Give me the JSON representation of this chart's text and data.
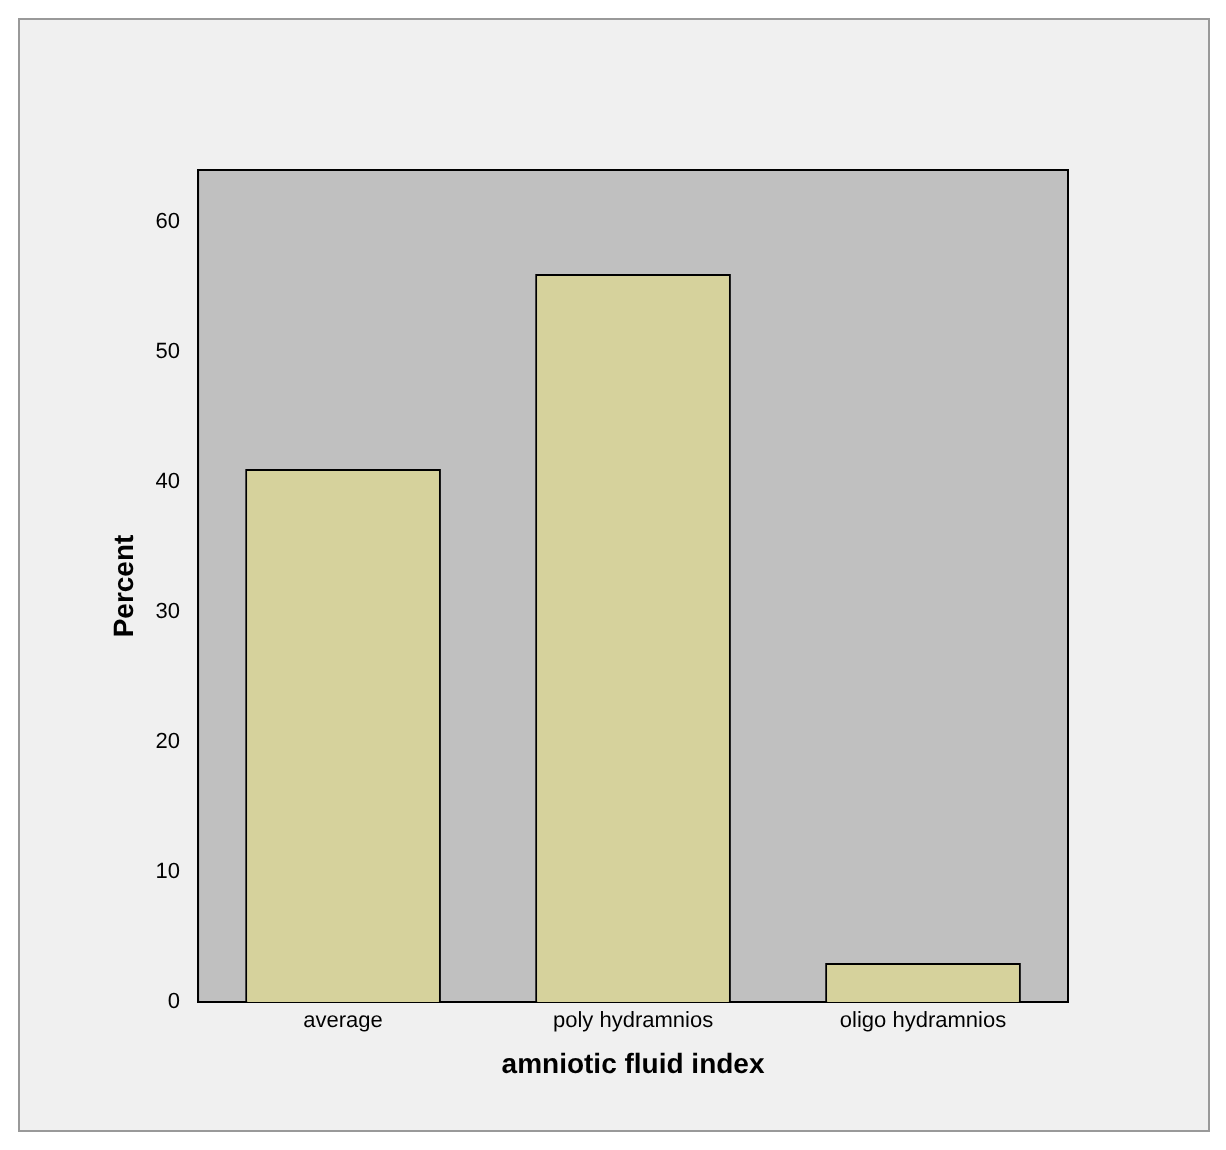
{
  "chart_data": {
    "type": "bar",
    "xlabel": "amniotic fluid index",
    "ylabel": "Percent",
    "categories": [
      "average",
      "poly hydramnios",
      "oligo hydramnios"
    ],
    "values": [
      41,
      56,
      3
    ],
    "color": "#d6d29c",
    "ylim": [
      0,
      64
    ],
    "yticks": [
      0,
      10,
      20,
      30,
      40,
      50,
      60
    ],
    "grid": false,
    "legend": false
  }
}
